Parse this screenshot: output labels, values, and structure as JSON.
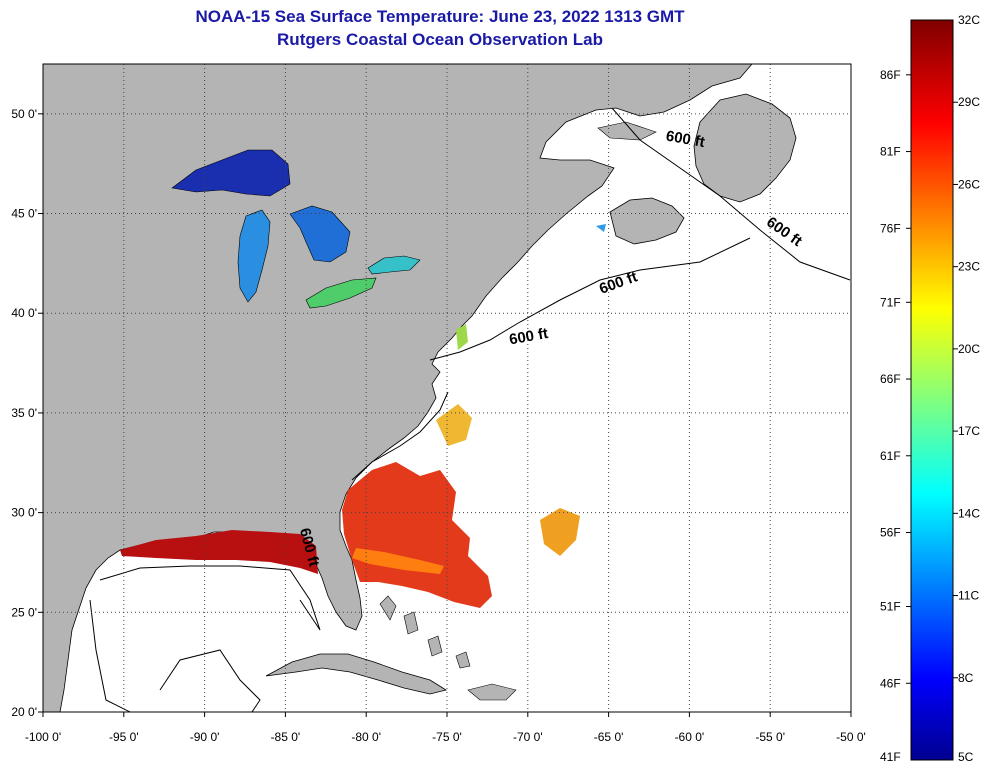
{
  "header": {
    "title_line1": "NOAA-15 Sea Surface Temperature:  June 23, 2022 1313 GMT",
    "title_line2": "Rutgers Coastal Ocean Observation Lab"
  },
  "map": {
    "lon_range": [
      -100,
      -50
    ],
    "lat_range": [
      20,
      52.5
    ],
    "lon_ticks": [
      {
        "lon": -100,
        "label": "-100 0'"
      },
      {
        "lon": -95,
        "label": "-95 0'"
      },
      {
        "lon": -90,
        "label": "-90 0'"
      },
      {
        "lon": -85,
        "label": "-85 0'"
      },
      {
        "lon": -80,
        "label": "-80 0'"
      },
      {
        "lon": -75,
        "label": "-75 0'"
      },
      {
        "lon": -70,
        "label": "-70 0'"
      },
      {
        "lon": -65,
        "label": "-65 0'"
      },
      {
        "lon": -60,
        "label": "-60 0'"
      },
      {
        "lon": -55,
        "label": "-55 0'"
      },
      {
        "lon": -50,
        "label": "-50 0'"
      }
    ],
    "lat_ticks": [
      {
        "lat": 50,
        "label": "50 0'"
      },
      {
        "lat": 45,
        "label": "45 0'"
      },
      {
        "lat": 40,
        "label": "40 0'"
      },
      {
        "lat": 35,
        "label": "35 0'"
      },
      {
        "lat": 30,
        "label": "30 0'"
      },
      {
        "lat": 25,
        "label": "25 0'"
      },
      {
        "lat": 20,
        "label": "20 0'"
      }
    ],
    "contour_labels": [
      {
        "text": "600 ft",
        "lon": -60.3,
        "lat": 48.5,
        "angle": 10
      },
      {
        "text": "600 ft",
        "lon": -54.3,
        "lat": 43.9,
        "angle": 35
      },
      {
        "text": "600 ft",
        "lon": -64.3,
        "lat": 41.3,
        "angle": -20
      },
      {
        "text": "600 ft",
        "lon": -69.9,
        "lat": 38.6,
        "angle": -10
      },
      {
        "text": "600 ft",
        "lon": -83.8,
        "lat": 28.2,
        "angle": 75
      }
    ],
    "colors": {
      "land": "#b4b4b4",
      "ocean": "#ffffff",
      "coast": "#000000",
      "grid": "#444444"
    }
  },
  "colorbar": {
    "celsius_range": [
      5,
      32
    ],
    "celsius_labels": [
      "32C",
      "29C",
      "26C",
      "23C",
      "20C",
      "17C",
      "14C",
      "11C",
      "8C",
      "5C"
    ],
    "fahrenheit_labels": [
      {
        "label": "86F",
        "c": 30
      },
      {
        "label": "81F",
        "c": 27.2
      },
      {
        "label": "76F",
        "c": 24.4
      },
      {
        "label": "71F",
        "c": 21.7
      },
      {
        "label": "66F",
        "c": 18.9
      },
      {
        "label": "61F",
        "c": 16.1
      },
      {
        "label": "56F",
        "c": 13.3
      },
      {
        "label": "51F",
        "c": 10.6
      },
      {
        "label": "46F",
        "c": 7.8
      },
      {
        "label": "41F",
        "c": 5
      }
    ]
  }
}
